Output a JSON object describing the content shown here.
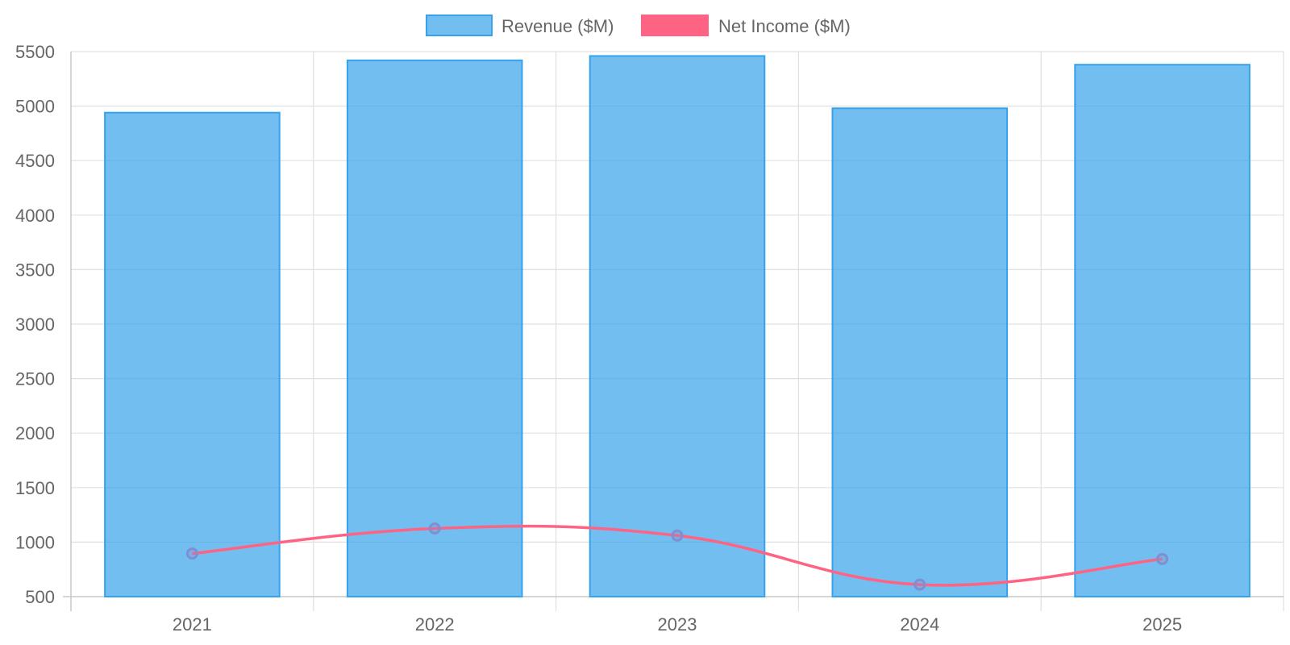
{
  "chart_data": {
    "type": "bar",
    "categories": [
      "2021",
      "2022",
      "2023",
      "2024",
      "2025"
    ],
    "series": [
      {
        "name": "Revenue ($M)",
        "type": "bar",
        "values": [
          4940,
          5420,
          5460,
          4980,
          5380
        ],
        "color": "#36a2eb",
        "fill": "rgba(54,162,235,0.7)"
      },
      {
        "name": "Net Income ($M)",
        "type": "line",
        "values": [
          895,
          1125,
          1060,
          610,
          845
        ],
        "color": "#ff6384",
        "point_color": "#7f8fd0"
      }
    ],
    "ylim": [
      500,
      5500
    ],
    "yticks": [
      500,
      1000,
      1500,
      2000,
      2500,
      3000,
      3500,
      4000,
      4500,
      5000,
      5500
    ],
    "grid": true,
    "legend_position": "top"
  }
}
